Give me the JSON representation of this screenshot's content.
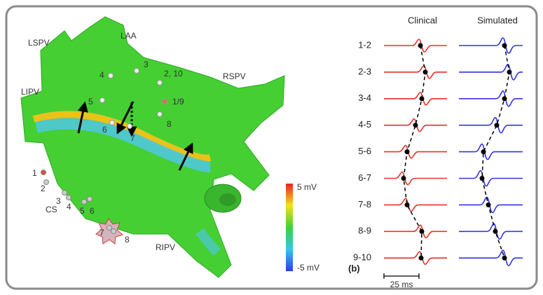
{
  "panel_a": {
    "regions": [
      "LSPV",
      "LAA",
      "LIPV",
      "RSPV",
      "RIPV"
    ],
    "electrodes": [
      "3",
      "4",
      "2, 10",
      "5",
      "1/9",
      "6",
      "7",
      "8"
    ],
    "cs_electrodes": [
      "1",
      "2",
      "3",
      "4",
      "5",
      "6",
      "7",
      "8"
    ],
    "cs_label": "CS",
    "colorbar": {
      "max": "5 mV",
      "min": "-5 mV"
    }
  },
  "panel_b": {
    "label": "(b)",
    "columns": [
      "Clinical",
      "Simulated"
    ],
    "rows": [
      "1-2",
      "2-3",
      "3-4",
      "4-5",
      "5-6",
      "6-7",
      "7-8",
      "8-9",
      "9-10"
    ],
    "scale": "25 ms"
  }
}
